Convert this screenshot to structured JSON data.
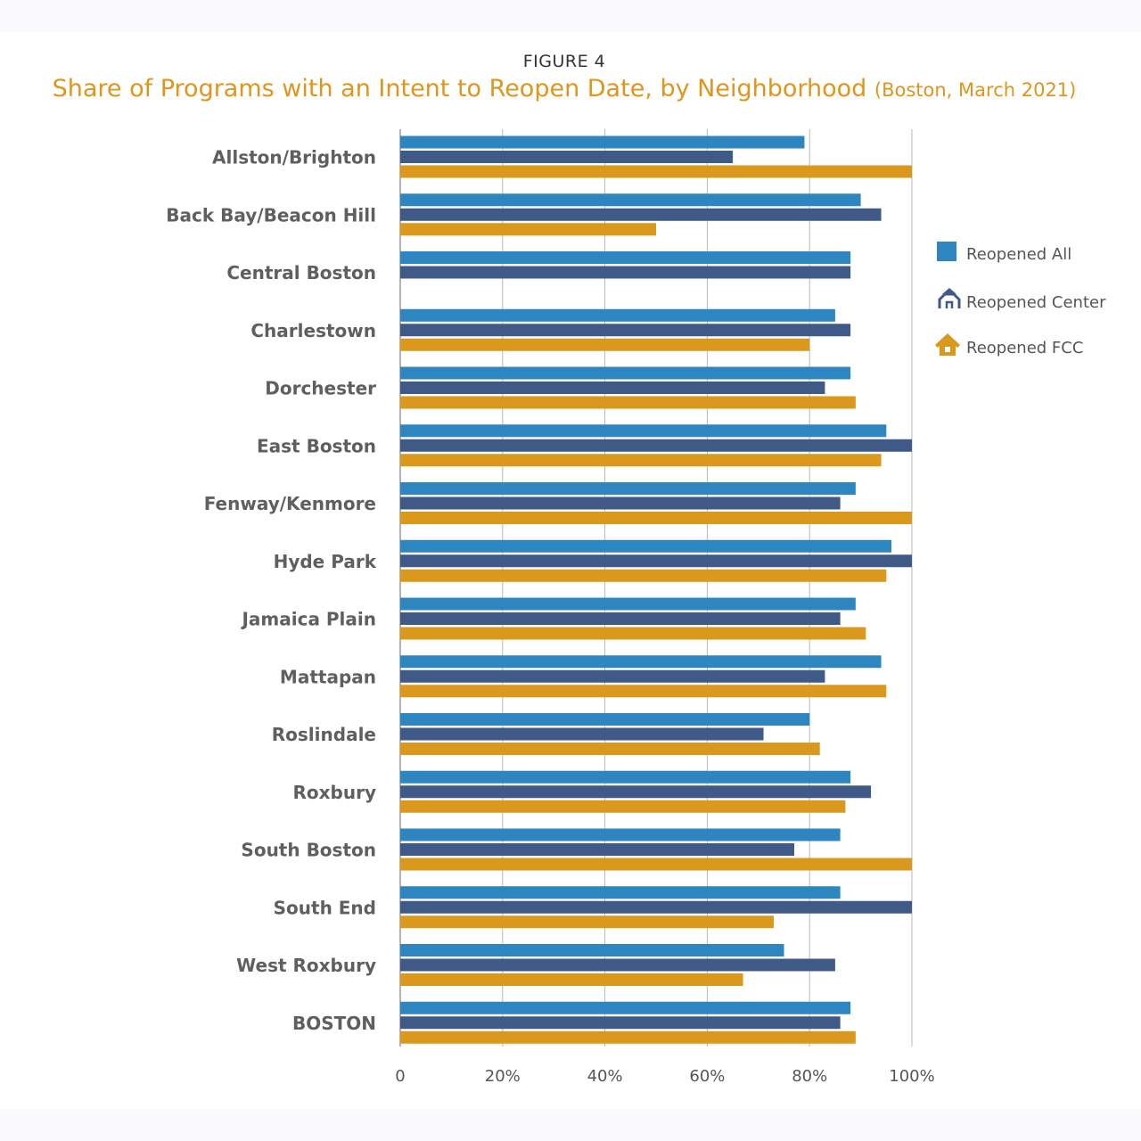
{
  "figure_label": "FIGURE 4",
  "title_main": "Share of Programs with an Intent to Reopen Date, by Neighborhood",
  "title_sub": "(Boston, March 2021)",
  "chart_data": {
    "type": "bar",
    "orientation": "horizontal",
    "categories": [
      "Allston/Brighton",
      "Back Bay/Beacon Hill",
      "Central Boston",
      "Charlestown",
      "Dorchester",
      "East Boston",
      "Fenway/Kenmore",
      "Hyde Park",
      "Jamaica Plain",
      "Mattapan",
      "Roslindale",
      "Roxbury",
      "South Boston",
      "South End",
      "West Roxbury",
      "BOSTON"
    ],
    "series": [
      {
        "name": "Reopened All",
        "color": "#2e86c1",
        "icon": "square-icon",
        "values": [
          79,
          90,
          88,
          85,
          88,
          95,
          89,
          96,
          89,
          94,
          80,
          88,
          86,
          86,
          75,
          88
        ]
      },
      {
        "name": "Reopened Center",
        "color": "#3f5a87",
        "icon": "school-building-icon",
        "values": [
          65,
          94,
          88,
          88,
          83,
          100,
          86,
          100,
          86,
          83,
          71,
          92,
          77,
          100,
          85,
          86
        ]
      },
      {
        "name": "Reopened FCC",
        "color": "#da981c",
        "icon": "house-icon",
        "values": [
          100,
          50,
          null,
          80,
          89,
          94,
          100,
          95,
          91,
          95,
          82,
          87,
          100,
          73,
          67,
          89
        ]
      }
    ],
    "xlim": [
      0,
      100
    ],
    "xticks": [
      0,
      20,
      40,
      60,
      80,
      100
    ],
    "xtick_labels": [
      "0",
      "20%",
      "40%",
      "60%",
      "80%",
      "100%"
    ],
    "grid": true,
    "legend_position": "right"
  }
}
